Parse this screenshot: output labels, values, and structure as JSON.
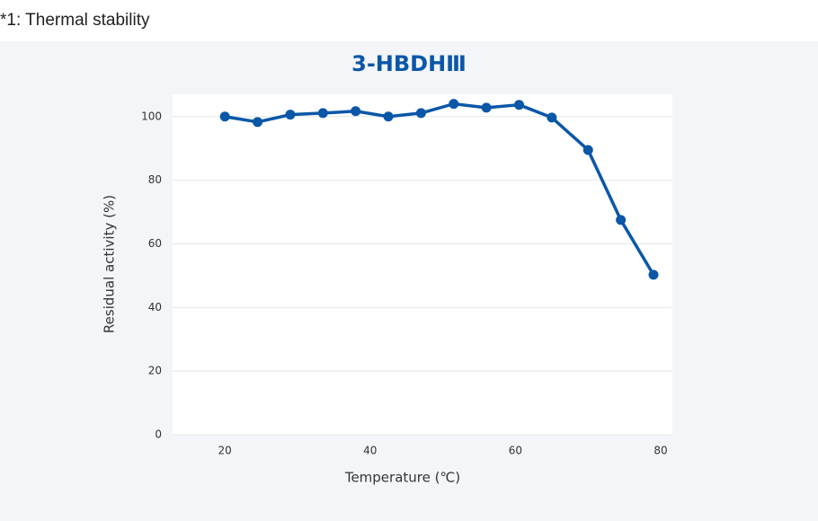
{
  "heading": "*1: Thermal stability",
  "chart_data": {
    "type": "line",
    "title": "3-HBDHⅢ",
    "x_label": "Temperature (℃)",
    "y_label": "Residual activity (%)",
    "x": [
      20,
      24.5,
      29,
      33.5,
      38,
      42.5,
      47,
      51.5,
      56,
      60.5,
      65,
      70,
      74.5,
      79
    ],
    "series": [
      {
        "name": "3-HBDHⅢ",
        "color": "#0a57a8",
        "values": [
          100,
          98.3,
          100.6,
          101.1,
          101.7,
          100,
          101.1,
          104,
          102.8,
          103.7,
          99.7,
          89.5,
          67.5,
          50.3
        ]
      }
    ],
    "xlim": [
      12.8,
      81.6
    ],
    "xticks": [
      20,
      40,
      60,
      80
    ],
    "ylim": [
      0,
      107
    ],
    "yticks": [
      0,
      20,
      40,
      60,
      80,
      100
    ],
    "grid": true
  }
}
